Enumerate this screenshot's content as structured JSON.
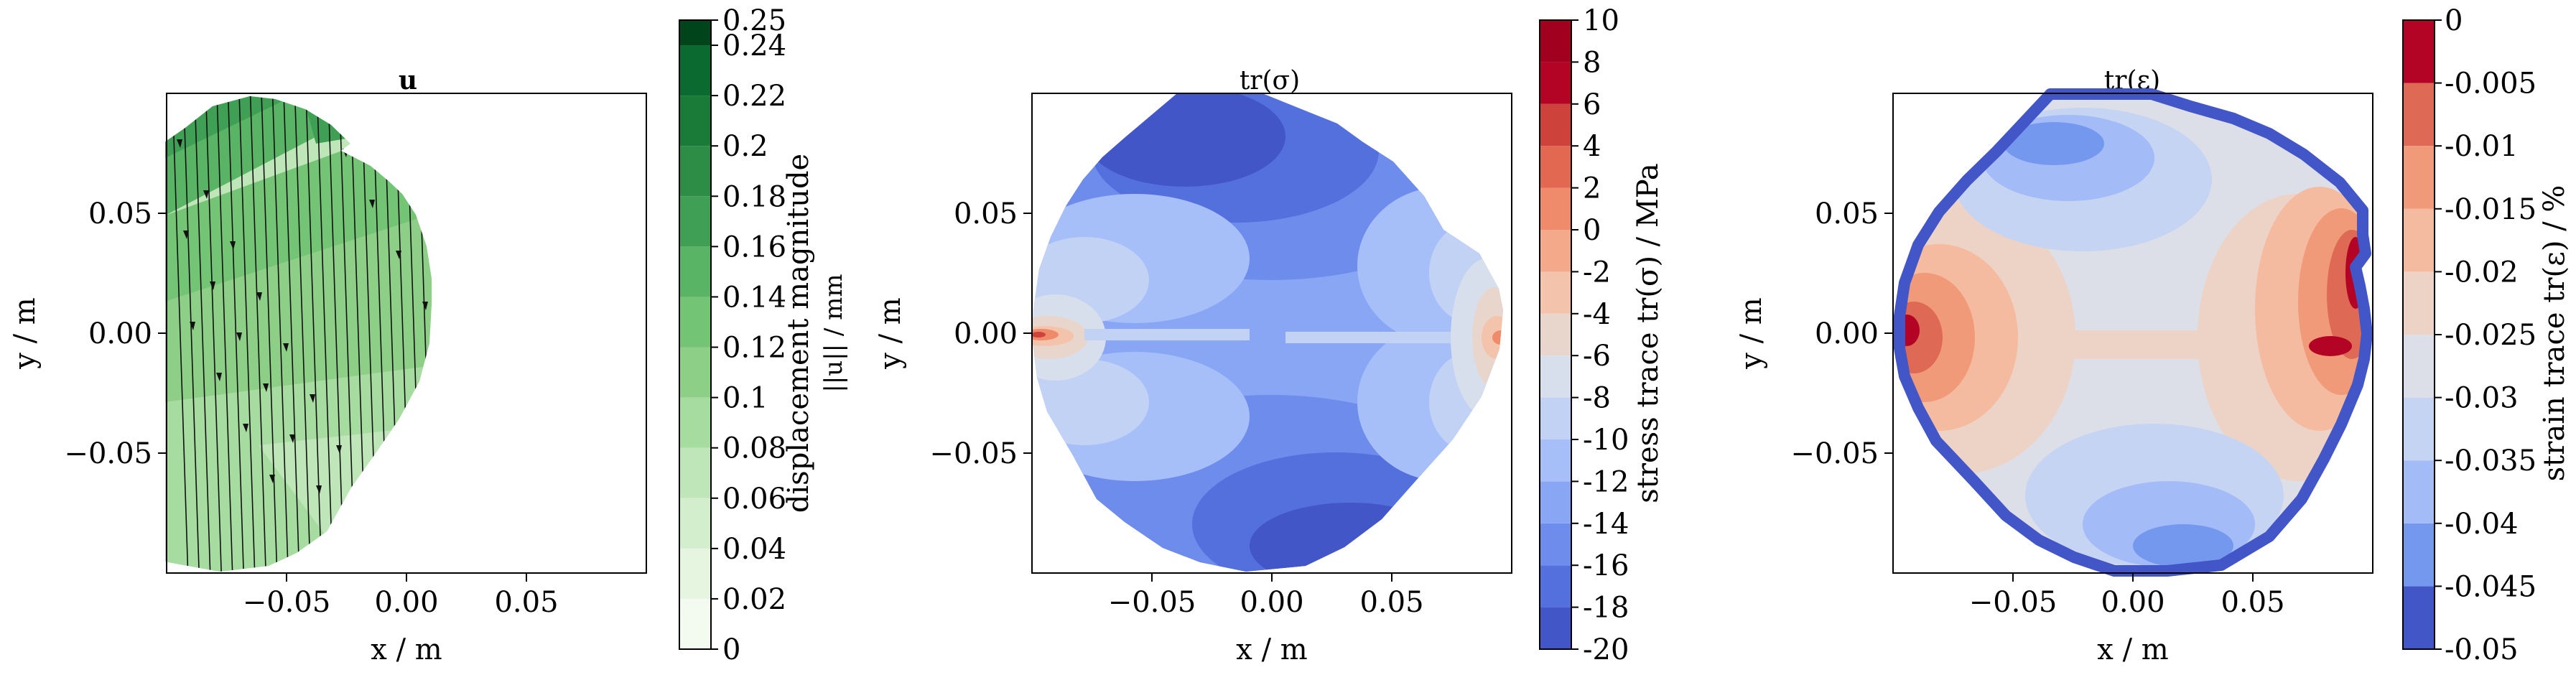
{
  "chart_data": [
    {
      "type": "contour",
      "title": "u",
      "xlabel": "x / m",
      "ylabel": "y / m",
      "xticks": [
        "−0.05",
        "0.00",
        "0.05"
      ],
      "yticks": [
        "0.05",
        "0.00",
        "−0.05"
      ],
      "xlim": [
        -0.1,
        0.1
      ],
      "ylim": [
        -0.1,
        0.1
      ],
      "overlay": "streamlines",
      "colorbar": {
        "label_line1": "displacement magnitude",
        "label_line2": "||u|| / mm",
        "ticks": [
          "0.25",
          "0.24",
          "0.22",
          "0.2",
          "0.18",
          "0.16",
          "0.14",
          "0.12",
          "0.1",
          "0.08",
          "0.06",
          "0.04",
          "0.02",
          "0"
        ],
        "levels": [
          0,
          0.02,
          0.04,
          0.06,
          0.08,
          0.1,
          0.12,
          0.14,
          0.16,
          0.18,
          0.2,
          0.22,
          0.24,
          0.25
        ],
        "colormap": "Greens",
        "colors_low_to_high": [
          "#f3faf0",
          "#e5f5e0",
          "#d3eecd",
          "#bfe6b9",
          "#a7dca0",
          "#8ecf87",
          "#74c476",
          "#59b465",
          "#3fa055",
          "#2d8c46",
          "#1a7a38",
          "#0b6a2f",
          "#00441b"
        ]
      }
    },
    {
      "type": "contour",
      "title": "tr(σ)",
      "xlabel": "x / m",
      "ylabel": "y / m",
      "xticks": [
        "−0.05",
        "0.00",
        "0.05"
      ],
      "yticks": [
        "0.05",
        "0.00",
        "−0.05"
      ],
      "xlim": [
        -0.1,
        0.1
      ],
      "ylim": [
        -0.1,
        0.1
      ],
      "colorbar": {
        "label": "stress trace tr(σ) / MPa",
        "ticks": [
          "10",
          "8",
          "6",
          "4",
          "2",
          "0",
          "-2",
          "-4",
          "-6",
          "-8",
          "-10",
          "-12",
          "-14",
          "-16",
          "-18",
          "-20"
        ],
        "levels": [
          -20,
          -18,
          -16,
          -14,
          -12,
          -10,
          -8,
          -6,
          -4,
          -2,
          0,
          2,
          4,
          6,
          8,
          10
        ],
        "colormap": "coolwarm",
        "colors_low_to_high": [
          "#4356c8",
          "#5470dd",
          "#6d8ceb",
          "#89a6f4",
          "#a6bff8",
          "#c1d2f5",
          "#d7dfec",
          "#e8d6cc",
          "#f4c3ab",
          "#f5a98b",
          "#ef8a6b",
          "#e26852",
          "#cd423b",
          "#b40426",
          "#a1001f"
        ]
      }
    },
    {
      "type": "contour",
      "title": "tr(ε)",
      "xlabel": "x / m",
      "ylabel": "y / m",
      "xticks": [
        "−0.05",
        "0.00",
        "0.05"
      ],
      "yticks": [
        "0.05",
        "0.00",
        "−0.05"
      ],
      "xlim": [
        -0.1,
        0.1
      ],
      "ylim": [
        -0.1,
        0.1
      ],
      "colorbar": {
        "label": "strain trace tr(ε) / %",
        "ticks": [
          "0",
          "-0.005",
          "-0.01",
          "-0.015",
          "-0.02",
          "-0.025",
          "-0.03",
          "-0.035",
          "-0.04",
          "-0.045",
          "-0.05"
        ],
        "levels": [
          -0.05,
          -0.045,
          -0.04,
          -0.035,
          -0.03,
          -0.025,
          -0.02,
          -0.015,
          -0.01,
          -0.005,
          0
        ],
        "colormap": "coolwarm",
        "colors_low_to_high": [
          "#4356c8",
          "#7598ef",
          "#a3bcf7",
          "#c6d4f3",
          "#dcdfe8",
          "#ecd3c6",
          "#f5bba0",
          "#f09a7a",
          "#de6a55",
          "#b40426"
        ]
      }
    }
  ]
}
